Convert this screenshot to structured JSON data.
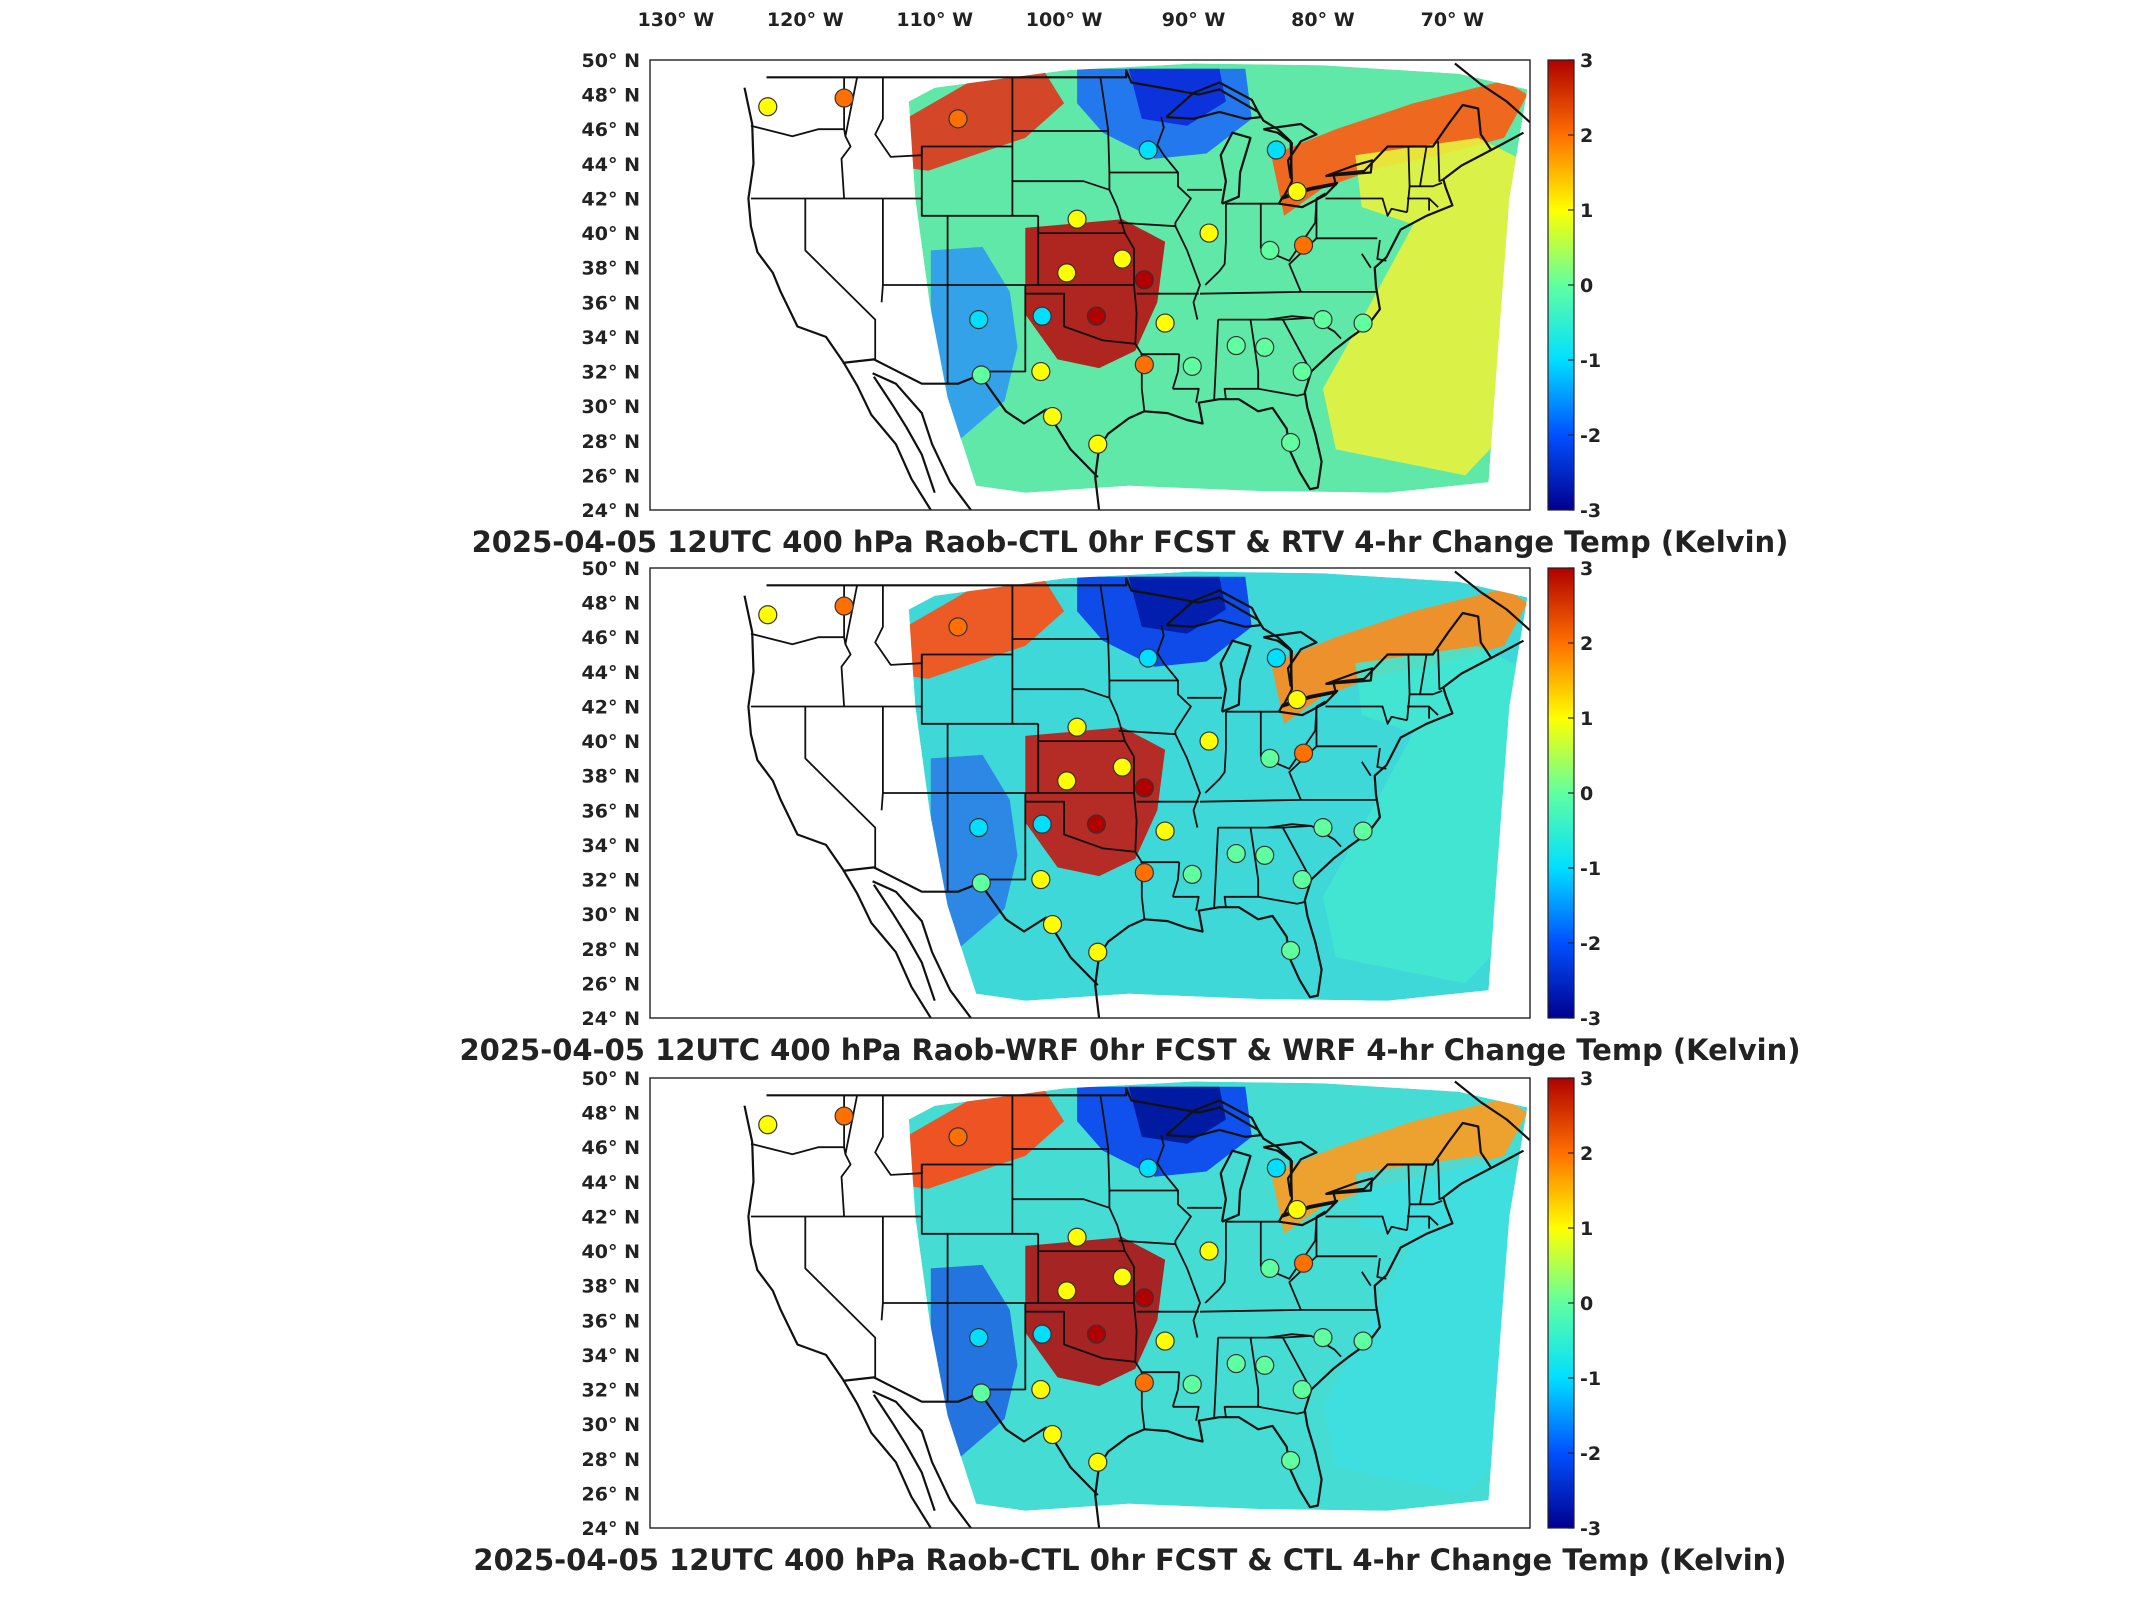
{
  "top_lon_labels": [
    "130° W",
    "120° W",
    "110° W",
    "100° W",
    "90° W",
    "80° W",
    "70° W"
  ],
  "lat_labels": [
    "50° N",
    "48° N",
    "46° N",
    "44° N",
    "42° N",
    "40° N",
    "38° N",
    "36° N",
    "34° N",
    "32° N",
    "30° N",
    "28° N",
    "26° N",
    "24° N"
  ],
  "colorbar_ticks": [
    "3",
    "2",
    "1",
    "0",
    "-1",
    "-2",
    "-3"
  ],
  "colormap": [
    "#00008f",
    "#0050ff",
    "#00dfff",
    "#60ffa0",
    "#ffff00",
    "#ff7000",
    "#b00000"
  ],
  "panels": [
    {
      "title": "2025-04-05 12UTC 400 hPa Raob-CTL 0hr FCST & RTV 4-hr Change Temp (Kelvin)",
      "field_colors": {
        "upper_midwest": "#0a2ad8",
        "dakotas": "#1e6cf5",
        "northwest_band": "#e0341a",
        "northeast": "#ff5a10",
        "southern_plains": "#b81010",
        "atlantic": "#e8f23c",
        "southwest": "#2f9af0",
        "base": "#5fe8a8"
      }
    },
    {
      "title": "2025-04-05 12UTC 400 hPa Raob-WRF 0hr FCST & WRF 4-hr Change Temp (Kelvin)",
      "field_colors": {
        "upper_midwest": "#001aa8",
        "dakotas": "#0a3cea",
        "northwest_band": "#ff4d12",
        "northeast": "#ff8a1a",
        "southern_plains": "#c21812",
        "atlantic": "#43e6d2",
        "southwest": "#2a7fe6",
        "base": "#3fd8d8"
      }
    },
    {
      "title": "2025-04-05 12UTC 400 hPa Raob-CTL 0hr FCST & CTL 4-hr Change Temp (Kelvin)",
      "field_colors": {
        "upper_midwest": "#00149a",
        "dakotas": "#0a40ee",
        "northwest_band": "#ff4410",
        "northeast": "#ff9a1c",
        "southern_plains": "#b01010",
        "atlantic": "#3fdfe0",
        "southwest": "#1f68e0",
        "base": "#45dcd4"
      }
    }
  ],
  "raob_stations": [
    {
      "lon": -122.9,
      "lat": 47.3,
      "value": 0.8
    },
    {
      "lon": -117.0,
      "lat": 47.8,
      "value": 1.7
    },
    {
      "lon": -108.2,
      "lat": 46.6,
      "value": 1.7
    },
    {
      "lon": -93.5,
      "lat": 44.8,
      "value": -0.7
    },
    {
      "lon": -83.6,
      "lat": 44.8,
      "value": -1.0
    },
    {
      "lon": -82.0,
      "lat": 42.4,
      "value": 0.9
    },
    {
      "lon": -99.0,
      "lat": 40.8,
      "value": 0.9
    },
    {
      "lon": -88.8,
      "lat": 40.0,
      "value": 1.1
    },
    {
      "lon": -81.5,
      "lat": 39.3,
      "value": 1.8
    },
    {
      "lon": -84.1,
      "lat": 39.0,
      "value": -0.2
    },
    {
      "lon": -95.5,
      "lat": 38.5,
      "value": 1.0
    },
    {
      "lon": -99.8,
      "lat": 37.7,
      "value": 1.0
    },
    {
      "lon": -93.8,
      "lat": 37.3,
      "value": 2.6
    },
    {
      "lon": -106.6,
      "lat": 35.0,
      "value": -0.9
    },
    {
      "lon": -101.7,
      "lat": 35.2,
      "value": -0.6
    },
    {
      "lon": -97.5,
      "lat": 35.2,
      "value": 3.0
    },
    {
      "lon": -92.2,
      "lat": 34.8,
      "value": 0.9
    },
    {
      "lon": -80.0,
      "lat": 35.0,
      "value": 0.1
    },
    {
      "lon": -76.9,
      "lat": 34.8,
      "value": 0.2
    },
    {
      "lon": -86.7,
      "lat": 33.5,
      "value": -0.2
    },
    {
      "lon": -84.5,
      "lat": 33.4,
      "value": -0.1
    },
    {
      "lon": -90.1,
      "lat": 32.3,
      "value": 0.0
    },
    {
      "lon": -93.8,
      "lat": 32.4,
      "value": 2.0
    },
    {
      "lon": -101.8,
      "lat": 32.0,
      "value": 0.6
    },
    {
      "lon": -106.4,
      "lat": 31.8,
      "value": 0.2
    },
    {
      "lon": -81.6,
      "lat": 32.0,
      "value": 0.0
    },
    {
      "lon": -100.9,
      "lat": 29.4,
      "value": 0.9
    },
    {
      "lon": -97.4,
      "lat": 27.8,
      "value": 0.8
    },
    {
      "lon": -82.5,
      "lat": 27.9,
      "value": 0.2
    }
  ]
}
